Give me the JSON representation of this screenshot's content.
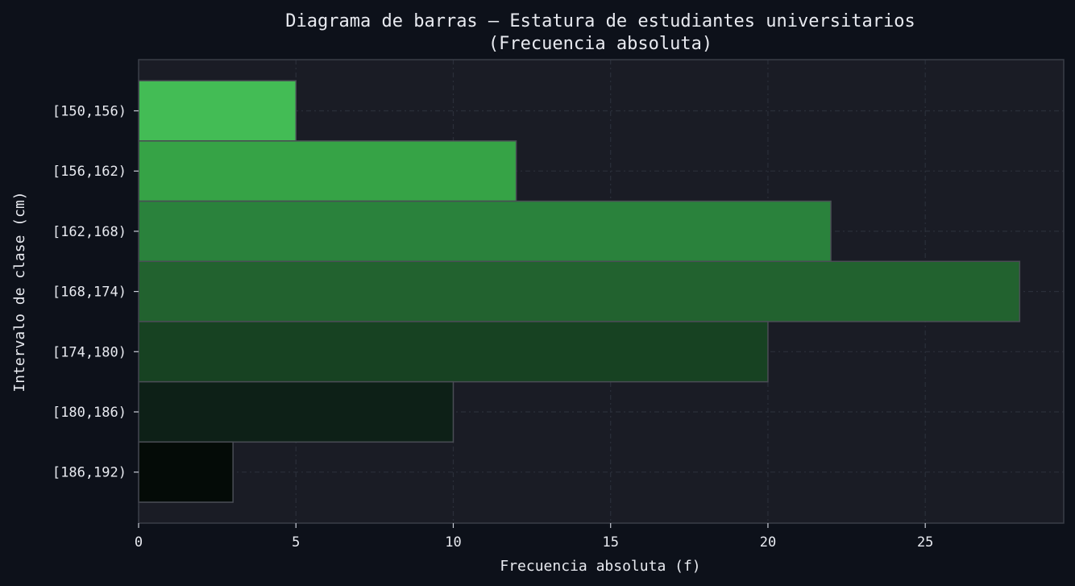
{
  "chart_data": {
    "type": "bar",
    "orientation": "horizontal",
    "title_line1": "Diagrama de barras — Estatura de estudiantes universitarios",
    "title_line2": "(Frecuencia absoluta)",
    "xlabel": "Frecuencia absoluta (f)",
    "ylabel": "Intervalo de clase (cm)",
    "categories": [
      "[150,156)",
      "[156,162)",
      "[162,168)",
      "[168,174)",
      "[174,180)",
      "[180,186)",
      "[186,192)"
    ],
    "values": [
      5,
      12,
      22,
      28,
      20,
      10,
      3
    ],
    "bar_colors": [
      "#43bc55",
      "#36a346",
      "#2a823c",
      "#22622f",
      "#174222",
      "#0d2017",
      "#040b07"
    ],
    "xlim": [
      0,
      29.4
    ],
    "xticks": [
      "0",
      "5",
      "10",
      "15",
      "20",
      "25"
    ],
    "grid": true,
    "colors": {
      "background": "#0d111a",
      "plot_background": "#1a1c25",
      "text": "#e8eaf0",
      "grid": "#2b2f3a",
      "bar_edge": "#4a4d55"
    }
  }
}
